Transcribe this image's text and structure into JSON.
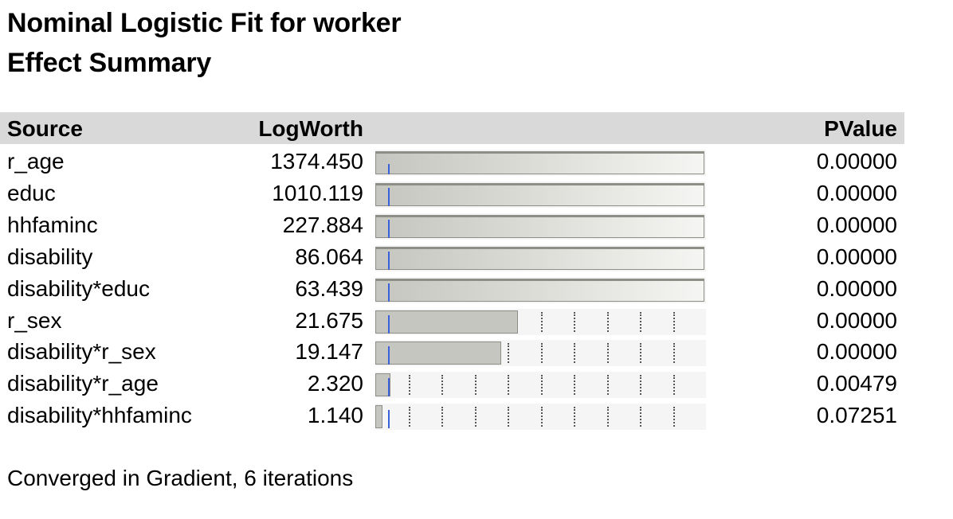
{
  "report": {
    "title": "Nominal Logistic Fit for worker",
    "subtitle": "Effect Summary"
  },
  "table": {
    "headers": {
      "source": "Source",
      "logworth": "LogWorth",
      "pvalue": "PValue"
    },
    "rows": [
      {
        "source": "r_age",
        "logworth": "1374.450",
        "pvalue": "0.00000"
      },
      {
        "source": "educ",
        "logworth": "1010.119",
        "pvalue": "0.00000"
      },
      {
        "source": "hhfaminc",
        "logworth": "227.884",
        "pvalue": "0.00000"
      },
      {
        "source": "disability",
        "logworth": "86.064",
        "pvalue": "0.00000"
      },
      {
        "source": "disability*educ",
        "logworth": "63.439",
        "pvalue": "0.00000"
      },
      {
        "source": "r_sex",
        "logworth": "21.675",
        "pvalue": "0.00000"
      },
      {
        "source": "disability*r_sex",
        "logworth": "19.147",
        "pvalue": "0.00000"
      },
      {
        "source": "disability*r_age",
        "logworth": "2.320",
        "pvalue": "0.00479"
      },
      {
        "source": "disability*hhfaminc",
        "logworth": "1.140",
        "pvalue": "0.07251"
      }
    ]
  },
  "bar_scale": {
    "max_logworth": 50,
    "grid_step": 5,
    "reference_logworth": 2
  },
  "colors": {
    "header_bg": "#d9d9d9",
    "bar_fill": "#c6c6c0",
    "bar_border": "#8e8e86",
    "reference_line": "#3a5fd8"
  },
  "footer": {
    "status": "Converged in Gradient, 6 iterations"
  }
}
